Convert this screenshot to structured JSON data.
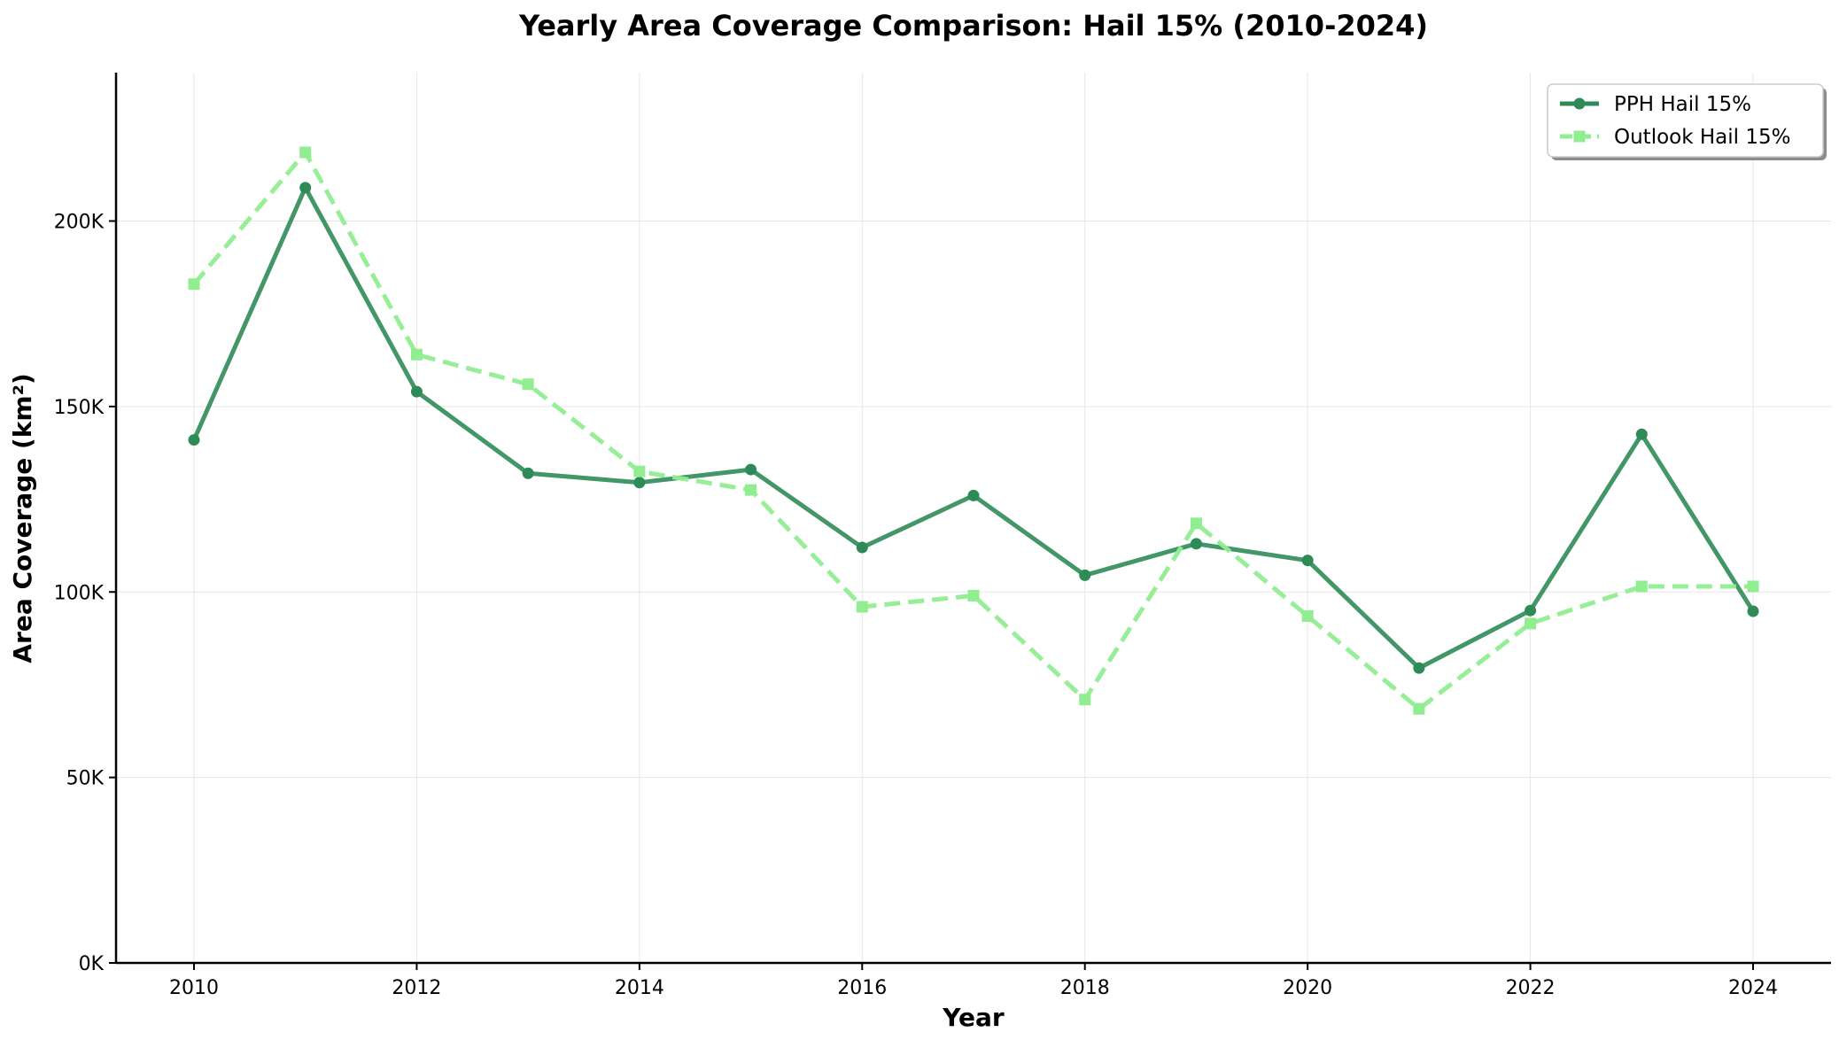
{
  "chart_data": {
    "type": "line",
    "title": "Yearly Area Coverage Comparison: Hail 15% (2010-2024)",
    "xlabel": "Year",
    "ylabel": "Area Coverage (km²)",
    "x": [
      2010,
      2011,
      2012,
      2013,
      2014,
      2015,
      2016,
      2017,
      2018,
      2019,
      2020,
      2021,
      2022,
      2023,
      2024
    ],
    "xlim": [
      2009.3,
      2024.7
    ],
    "ylim": [
      0,
      240000
    ],
    "x_ticks": [
      2010,
      2012,
      2014,
      2016,
      2018,
      2020,
      2022,
      2024
    ],
    "y_ticks": [
      0,
      50000,
      100000,
      150000,
      200000
    ],
    "y_tick_labels": [
      "0K",
      "50K",
      "100K",
      "150K",
      "200K"
    ],
    "grid": true,
    "legend_position": "top-right",
    "series": [
      {
        "name": "PPH Hail 15%",
        "color": "#2e8b57",
        "line_style": "solid",
        "marker": "circle",
        "values": [
          141000,
          209000,
          154000,
          132000,
          129500,
          133000,
          112000,
          126000,
          104500,
          113000,
          108500,
          79500,
          95000,
          142500,
          94800
        ]
      },
      {
        "name": "Outlook Hail 15%",
        "color": "#90ee90",
        "line_style": "dashed",
        "marker": "square",
        "values": [
          183000,
          218500,
          164000,
          156000,
          132500,
          127500,
          96000,
          99000,
          71000,
          118500,
          93500,
          68500,
          91500,
          101500,
          101500
        ]
      }
    ]
  }
}
